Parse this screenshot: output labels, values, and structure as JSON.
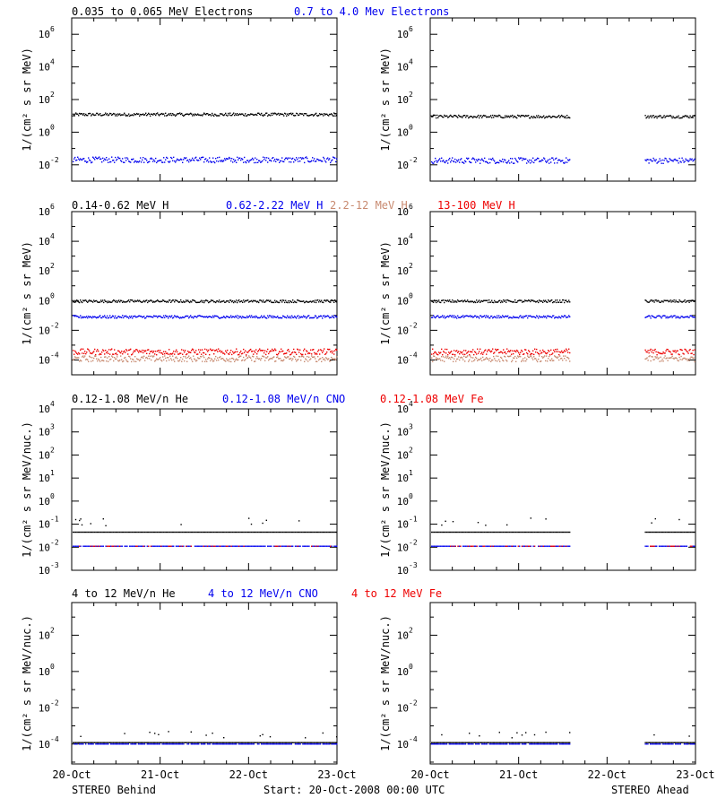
{
  "footer": {
    "left": "STEREO Behind",
    "center": "Start: 20-Oct-2008 00:00 UTC",
    "right": "STEREO Ahead"
  },
  "x_ticks": [
    "20-Oct",
    "21-Oct",
    "22-Oct",
    "23-Oct"
  ],
  "colors": {
    "black": "#000000",
    "blue": "#0000ee",
    "tan": "#c88a70",
    "red": "#ee0000"
  },
  "rows": [
    {
      "headers": [
        {
          "text": "0.035 to 0.065 MeV Electrons",
          "color": "black"
        },
        {
          "text": "0.7 to 4.0 Mev Electrons",
          "color": "blue"
        }
      ],
      "ylabel": "1/(cm² s sr MeV)",
      "ylog": [
        -3,
        7
      ],
      "ticks": [
        {
          "exp": -2,
          "base": "10",
          "sup": "-2"
        },
        {
          "exp": 0,
          "base": "10",
          "sup": "0"
        },
        {
          "exp": 2,
          "base": "10",
          "sup": "2"
        },
        {
          "exp": 4,
          "base": "10",
          "sup": "4"
        },
        {
          "exp": 6,
          "base": "10",
          "sup": "6"
        }
      ],
      "minor": true
    },
    {
      "headers": [
        {
          "text": "0.14-0.62 MeV H",
          "color": "black"
        },
        {
          "text": "0.62-2.22 MeV H",
          "color": "blue"
        },
        {
          "text": "2.2-12 MeV H",
          "color": "tan"
        },
        {
          "text": "13-100 MeV H",
          "color": "red"
        }
      ],
      "ylabel": "1/(cm² s sr MeV)",
      "ylog": [
        -5,
        6
      ],
      "ticks": [
        {
          "exp": -4,
          "base": "10",
          "sup": "-4"
        },
        {
          "exp": -2,
          "base": "10",
          "sup": "-2"
        },
        {
          "exp": 0,
          "base": "10",
          "sup": "0"
        },
        {
          "exp": 2,
          "base": "10",
          "sup": "2"
        },
        {
          "exp": 4,
          "base": "10",
          "sup": "4"
        },
        {
          "exp": 6,
          "base": "10",
          "sup": "6"
        }
      ],
      "minor": true
    },
    {
      "headers": [
        {
          "text": "0.12-1.08 MeV/n He",
          "color": "black"
        },
        {
          "text": "0.12-1.08 MeV/n CNO",
          "color": "blue"
        },
        {
          "text": "0.12-1.08 MeV Fe",
          "color": "red"
        }
      ],
      "ylabel": "1/(cm² s sr MeV/nuc.)",
      "ylog": [
        -3,
        4
      ],
      "ticks": [
        {
          "exp": -3,
          "base": "10",
          "sup": "-3"
        },
        {
          "exp": -2,
          "base": "10",
          "sup": "-2"
        },
        {
          "exp": -1,
          "base": "10",
          "sup": "-1"
        },
        {
          "exp": 0,
          "base": "10",
          "sup": "0"
        },
        {
          "exp": 1,
          "base": "10",
          "sup": "1"
        },
        {
          "exp": 2,
          "base": "10",
          "sup": "2"
        },
        {
          "exp": 3,
          "base": "10",
          "sup": "3"
        },
        {
          "exp": 4,
          "base": "10",
          "sup": "4"
        }
      ],
      "minor": false
    },
    {
      "headers": [
        {
          "text": "4 to 12 MeV/n He",
          "color": "black"
        },
        {
          "text": "4 to 12 MeV/n CNO",
          "color": "blue"
        },
        {
          "text": "4 to 12 MeV Fe",
          "color": "red"
        }
      ],
      "ylabel": "1/(cm² s sr MeV/nuc.)",
      "ylog": [
        -5.1,
        3.8
      ],
      "ticks": [
        {
          "exp": -4,
          "base": "10",
          "sup": "-4"
        },
        {
          "exp": -2,
          "base": "10",
          "sup": "-2"
        },
        {
          "exp": 0,
          "base": "10",
          "sup": "0"
        },
        {
          "exp": 2,
          "base": "10",
          "sup": "2"
        }
      ],
      "minor": true
    }
  ],
  "chart_data": {
    "type": "scatter",
    "x_unit": "days from 20-Oct-2008 00:00 UTC",
    "xlim": [
      "20-Oct-2008",
      "23-Oct-2008"
    ],
    "panels": [
      {
        "spacecraft": "STEREO Behind",
        "row": 0,
        "series": [
          {
            "name": "0.035 to 0.065 MeV Electrons",
            "color": "black",
            "level": 12,
            "segments": [
              [
                "20-Oct",
                "23-Oct"
              ]
            ]
          },
          {
            "name": "0.7 to 4.0 Mev Electrons",
            "color": "blue",
            "level": 0.02,
            "segments": [
              [
                "20-Oct",
                "23-Oct"
              ]
            ]
          }
        ]
      },
      {
        "spacecraft": "STEREO Ahead",
        "row": 0,
        "series": [
          {
            "name": "0.035 to 0.065 MeV Electrons",
            "color": "black",
            "level": 9,
            "segments": [
              [
                "20-Oct",
                "21-Oct 14:00"
              ],
              [
                "22-Oct 10:00",
                "23-Oct"
              ]
            ]
          },
          {
            "name": "0.7 to 4.0 Mev Electrons",
            "color": "blue",
            "level": 0.018,
            "segments": [
              [
                "20-Oct",
                "21-Oct 14:00"
              ],
              [
                "22-Oct 10:00",
                "23-Oct"
              ]
            ]
          }
        ]
      },
      {
        "spacecraft": "STEREO Behind",
        "row": 1,
        "series": [
          {
            "name": "0.14-0.62 MeV H",
            "color": "black",
            "level": 0.9,
            "segments": [
              [
                "20-Oct",
                "23-Oct"
              ]
            ]
          },
          {
            "name": "0.62-2.22 MeV H",
            "color": "blue",
            "level": 0.08,
            "segments": [
              [
                "20-Oct",
                "23-Oct"
              ]
            ]
          },
          {
            "name": "2.2-12 MeV H",
            "color": "tan",
            "level": 0.00012,
            "segments": [
              [
                "20-Oct",
                "23-Oct"
              ]
            ]
          },
          {
            "name": "13-100 MeV H",
            "color": "red",
            "level": 0.00035,
            "segments": [
              [
                "20-Oct",
                "23-Oct"
              ]
            ]
          }
        ]
      },
      {
        "spacecraft": "STEREO Ahead",
        "row": 1,
        "series": [
          {
            "name": "0.14-0.62 MeV H",
            "color": "black",
            "level": 0.9,
            "segments": [
              [
                "20-Oct",
                "21-Oct 14:00"
              ],
              [
                "22-Oct 10:00",
                "23-Oct"
              ]
            ]
          },
          {
            "name": "0.62-2.22 MeV H",
            "color": "blue",
            "level": 0.08,
            "segments": [
              [
                "20-Oct",
                "21-Oct 14:00"
              ],
              [
                "22-Oct 10:00",
                "23-Oct"
              ]
            ]
          },
          {
            "name": "2.2-12 MeV H",
            "color": "tan",
            "level": 0.00012,
            "segments": [
              [
                "20-Oct",
                "21-Oct 14:00"
              ],
              [
                "22-Oct 10:00",
                "23-Oct"
              ]
            ]
          },
          {
            "name": "13-100 MeV H",
            "color": "red",
            "level": 0.00035,
            "segments": [
              [
                "20-Oct",
                "21-Oct 14:00"
              ],
              [
                "22-Oct 10:00",
                "23-Oct"
              ]
            ]
          }
        ]
      },
      {
        "spacecraft": "STEREO Behind",
        "row": 2,
        "series": [
          {
            "name": "0.12-1.08 MeV/n He",
            "color": "black",
            "level": 0.045,
            "segments": [
              [
                "20-Oct",
                "23-Oct"
              ]
            ]
          },
          {
            "name": "0.12-1.08 MeV/n CNO",
            "color": "blue",
            "level": 0.011,
            "segments": [
              [
                "20-Oct",
                "23-Oct"
              ]
            ]
          },
          {
            "name": "0.12-1.08 MeV Fe",
            "color": "red",
            "level": 0.011,
            "segments": [
              [
                "20-Oct",
                "23-Oct"
              ]
            ]
          }
        ]
      },
      {
        "spacecraft": "STEREO Ahead",
        "row": 2,
        "series": [
          {
            "name": "0.12-1.08 MeV/n He",
            "color": "black",
            "level": 0.045,
            "segments": [
              [
                "20-Oct",
                "21-Oct 14:00"
              ],
              [
                "22-Oct 10:00",
                "23-Oct"
              ]
            ]
          },
          {
            "name": "0.12-1.08 MeV/n CNO",
            "color": "blue",
            "level": 0.011,
            "segments": [
              [
                "20-Oct",
                "21-Oct 14:00"
              ],
              [
                "22-Oct 10:00",
                "23-Oct"
              ]
            ]
          },
          {
            "name": "0.12-1.08 MeV Fe",
            "color": "red",
            "level": 0.011,
            "segments": [
              [
                "20-Oct",
                "21-Oct 14:00"
              ],
              [
                "22-Oct 10:00",
                "23-Oct"
              ]
            ]
          }
        ]
      },
      {
        "spacecraft": "STEREO Behind",
        "row": 3,
        "series": [
          {
            "name": "4 to 12 MeV/n He",
            "color": "black",
            "level": 0.00012,
            "segments": [
              [
                "20-Oct",
                "23-Oct"
              ]
            ]
          },
          {
            "name": "4 to 12 MeV/n CNO",
            "color": "blue",
            "level": 0.0001,
            "segments": [
              [
                "20-Oct",
                "23-Oct"
              ]
            ]
          }
        ]
      },
      {
        "spacecraft": "STEREO Ahead",
        "row": 3,
        "series": [
          {
            "name": "4 to 12 MeV/n He",
            "color": "black",
            "level": 0.00012,
            "segments": [
              [
                "20-Oct",
                "21-Oct 14:00"
              ],
              [
                "22-Oct 10:00",
                "23-Oct"
              ]
            ]
          },
          {
            "name": "4 to 12 MeV/n CNO",
            "color": "blue",
            "level": 0.0001,
            "segments": [
              [
                "20-Oct",
                "21-Oct 14:00"
              ],
              [
                "22-Oct 10:00",
                "23-Oct"
              ]
            ]
          }
        ]
      }
    ]
  }
}
